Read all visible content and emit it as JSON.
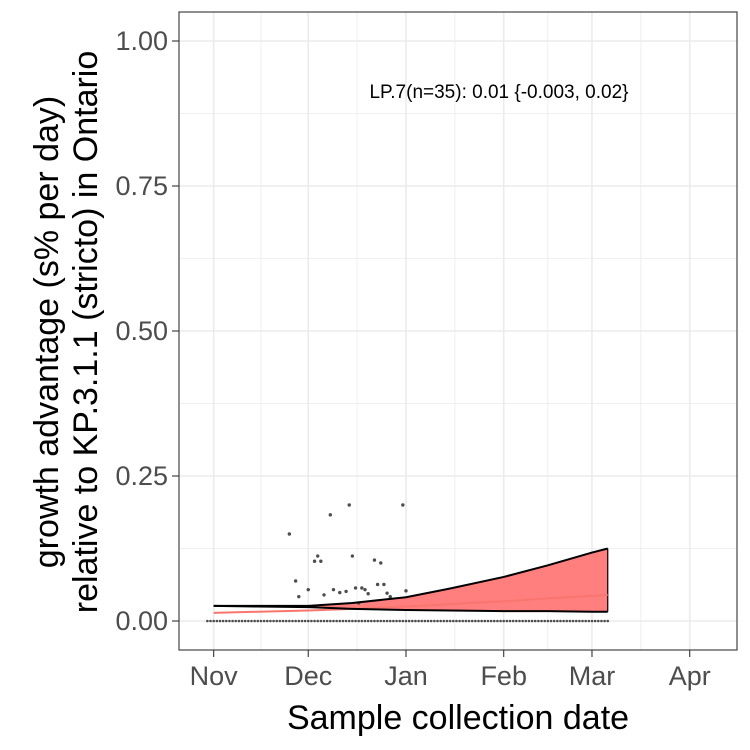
{
  "chart_data": {
    "type": "line",
    "xlabel": "Sample collection date",
    "ylabel_lines": [
      "growth advantage (s% per day)",
      "relative to KP.3.1.1 (stricto) in Ontario"
    ],
    "xlim": [
      "2024-10-21",
      "2025-04-16"
    ],
    "ylim": [
      -0.05,
      1.05
    ],
    "x_ticks": [
      {
        "date": "2024-11-01",
        "label": "Nov"
      },
      {
        "date": "2024-12-01",
        "label": "Dec"
      },
      {
        "date": "2025-01-01",
        "label": "Jan"
      },
      {
        "date": "2025-02-01",
        "label": "Feb"
      },
      {
        "date": "2025-03-01",
        "label": "Mar"
      },
      {
        "date": "2025-04-01",
        "label": "Apr"
      }
    ],
    "y_ticks": [
      {
        "value": 0.0,
        "label": "0.00"
      },
      {
        "value": 0.25,
        "label": "0.25"
      },
      {
        "value": 0.5,
        "label": "0.50"
      },
      {
        "value": 0.75,
        "label": "0.75"
      },
      {
        "value": 1.0,
        "label": "1.00"
      }
    ],
    "grid": true,
    "annotation": "LP.7(n=35): 0.01 {-0.003, 0.02}",
    "fit": {
      "x": [
        "2024-11-01",
        "2024-11-15",
        "2024-12-01",
        "2024-12-15",
        "2025-01-01",
        "2025-01-15",
        "2025-02-01",
        "2025-02-15",
        "2025-03-01",
        "2025-03-06"
      ],
      "mean": [
        0.014,
        0.016,
        0.018,
        0.021,
        0.025,
        0.029,
        0.034,
        0.039,
        0.043,
        0.045
      ],
      "lower": [
        0.026,
        0.025,
        0.024,
        0.021,
        0.019,
        0.018,
        0.017,
        0.017,
        0.016,
        0.016
      ],
      "upper": [
        0.026,
        0.026,
        0.026,
        0.031,
        0.041,
        0.056,
        0.076,
        0.096,
        0.118,
        0.125
      ]
    },
    "points": {
      "x": [
        "2024-11-25",
        "2024-11-27",
        "2024-11-28",
        "2024-12-01",
        "2024-12-03",
        "2024-12-04",
        "2024-12-05",
        "2024-12-06",
        "2024-12-08",
        "2024-12-09",
        "2024-12-11",
        "2024-12-13",
        "2024-12-14",
        "2024-12-15",
        "2024-12-16",
        "2024-12-17",
        "2024-12-18",
        "2024-12-19",
        "2024-12-20",
        "2024-12-22",
        "2024-12-23",
        "2024-12-24",
        "2024-12-25",
        "2024-12-26",
        "2024-12-27",
        "2024-12-31",
        "2025-01-01"
      ],
      "y": [
        0.15,
        0.069,
        0.042,
        0.054,
        0.103,
        0.112,
        0.103,
        0.045,
        0.183,
        0.054,
        0.049,
        0.051,
        0.2,
        0.112,
        0.057,
        0.031,
        0.057,
        0.054,
        0.047,
        0.105,
        0.063,
        0.1,
        0.063,
        0.048,
        0.042,
        0.2,
        0.052
      ],
      "zero_dates_from": "2024-10-30",
      "zero_dates_to": "2025-03-06"
    },
    "colors": {
      "ribbon_fill": "#ff7f7f",
      "ribbon_edge": "#000000",
      "mean_line": "#f8766d",
      "points": "#4d4d4d",
      "grid": "#ebebeb",
      "panel_border": "#333333"
    }
  }
}
